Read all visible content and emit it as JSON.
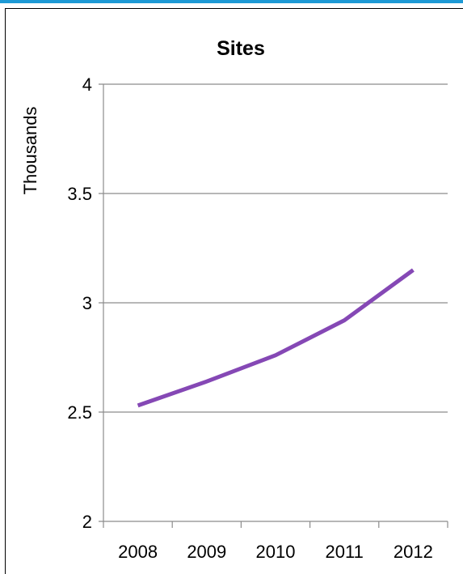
{
  "chart_data": {
    "type": "line",
    "title": "Sites",
    "xlabel": "",
    "ylabel": "Thousands",
    "categories": [
      "2008",
      "2009",
      "2010",
      "2011",
      "2012"
    ],
    "series": [
      {
        "values": [
          2.53,
          2.64,
          2.76,
          2.92,
          3.15
        ]
      }
    ],
    "ylim": [
      2,
      4
    ],
    "yticks": [
      "2",
      "2.5",
      "3",
      "3.5",
      "4"
    ],
    "line_color": "#8548b5",
    "grid": true,
    "legend": "none"
  },
  "colors": {
    "accent": "#1e9ad6",
    "grid": "#8c8c8c"
  }
}
